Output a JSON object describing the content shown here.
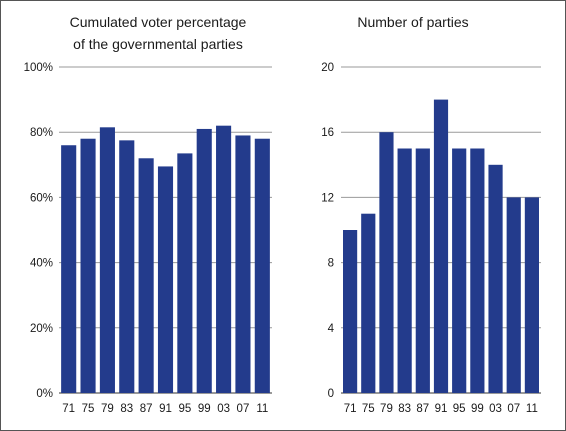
{
  "chart_data": [
    {
      "type": "bar",
      "title_lines": [
        "Cumulated voter percentage",
        "of the governmental parties"
      ],
      "categories": [
        "71",
        "75",
        "79",
        "83",
        "87",
        "91",
        "95",
        "99",
        "03",
        "07",
        "11"
      ],
      "values": [
        76,
        78,
        81.5,
        77.5,
        72,
        69.5,
        73.5,
        81,
        82,
        79,
        78
      ],
      "ylim": [
        0,
        100
      ],
      "yticks": [
        0,
        20,
        40,
        60,
        80,
        100
      ],
      "ytick_labels": [
        "0%",
        "20%",
        "40%",
        "60%",
        "80%",
        "100%"
      ],
      "bar_color": "#233b8c",
      "grid": true
    },
    {
      "type": "bar",
      "title_lines": [
        "Number of parties"
      ],
      "categories": [
        "71",
        "75",
        "79",
        "83",
        "87",
        "91",
        "95",
        "99",
        "03",
        "07",
        "11"
      ],
      "values": [
        10,
        11,
        16,
        15,
        15,
        18,
        15,
        15,
        14,
        12,
        12
      ],
      "ylim": [
        0,
        20
      ],
      "yticks": [
        0,
        4,
        8,
        12,
        16,
        20
      ],
      "ytick_labels": [
        "0",
        "4",
        "8",
        "12",
        "16",
        "20"
      ],
      "bar_color": "#233b8c",
      "grid": true
    }
  ]
}
